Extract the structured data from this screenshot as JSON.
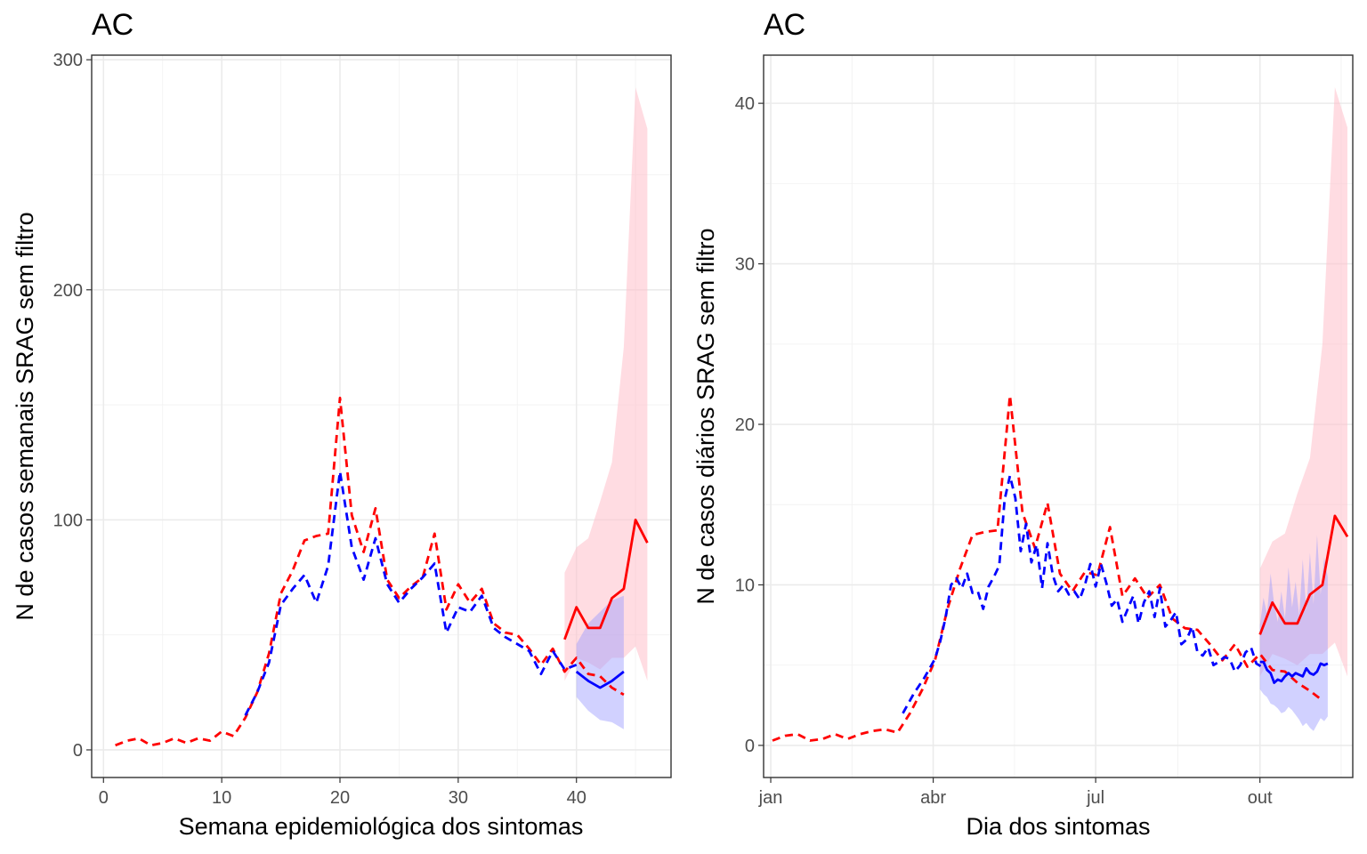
{
  "colors": {
    "observed": "#ff0000",
    "nowcast": "#0000ff",
    "ribbon_red": "#ffc0cb",
    "ribbon_blue": "#9999ff"
  },
  "chart_data": [
    {
      "type": "line",
      "title": "AC",
      "xlabel": "Semana epidemiológica dos sintomas",
      "ylabel": "N de casos semanais SRAG sem filtro",
      "xlim": [
        -1,
        48
      ],
      "ylim": [
        -12,
        302
      ],
      "x_ticks": [
        0,
        10,
        20,
        30,
        40
      ],
      "x_tick_labels": [
        "0",
        "10",
        "20",
        "30",
        "40"
      ],
      "y_ticks": [
        0,
        100,
        200,
        300
      ],
      "y_tick_labels": [
        "0",
        "100",
        "200",
        "300"
      ],
      "grid": true,
      "series": [
        {
          "style": "dashed",
          "color": "red",
          "x": [
            1,
            2,
            3,
            4,
            5,
            6,
            7,
            8,
            9,
            10,
            11,
            12,
            13,
            14,
            15,
            16,
            17,
            18,
            19,
            20,
            21,
            22,
            23,
            24,
            25,
            26,
            27,
            28,
            29,
            30,
            31,
            32,
            33,
            34,
            35,
            36,
            37,
            38,
            39,
            40,
            41,
            42,
            43,
            44
          ],
          "y": [
            2,
            4,
            5,
            2,
            3,
            5,
            3,
            5,
            4,
            8,
            6,
            14,
            25,
            42,
            68,
            78,
            91,
            93,
            94,
            153,
            102,
            86,
            105,
            74,
            66,
            71,
            75,
            94,
            61,
            72,
            64,
            70,
            55,
            51,
            50,
            44,
            37,
            44,
            34,
            40,
            33,
            32,
            27,
            24
          ]
        },
        {
          "style": "dashed",
          "color": "blue",
          "x": [
            12,
            13,
            14,
            15,
            16,
            17,
            18,
            19,
            20,
            21,
            22,
            23,
            24,
            25,
            26,
            27,
            28,
            29,
            30,
            31,
            32,
            33,
            34,
            35,
            36,
            37,
            38,
            39,
            40
          ],
          "y": [
            15,
            25,
            38,
            63,
            70,
            76,
            64,
            80,
            121,
            88,
            74,
            92,
            72,
            64,
            70,
            75,
            81,
            51,
            62,
            60,
            67,
            53,
            49,
            46,
            43,
            33,
            43,
            35,
            37
          ]
        },
        {
          "style": "solid",
          "color": "red",
          "x": [
            39,
            40,
            41,
            42,
            43,
            44,
            45,
            46
          ],
          "y": [
            48,
            62,
            53,
            53,
            66,
            70,
            100,
            90
          ]
        },
        {
          "style": "solid",
          "color": "blue",
          "x": [
            40,
            41,
            42,
            43,
            44
          ],
          "y": [
            34,
            30,
            27,
            30,
            34
          ]
        }
      ],
      "ribbons": [
        {
          "color": "pink",
          "x": [
            39,
            40,
            41,
            42,
            43,
            44,
            45,
            46
          ],
          "lower": [
            30,
            40,
            38,
            35,
            40,
            40,
            45,
            30
          ],
          "upper": [
            77,
            88,
            92,
            108,
            125,
            175,
            288,
            270
          ]
        },
        {
          "color": "lightblue",
          "x": [
            40,
            41,
            42,
            43,
            44
          ],
          "lower": [
            23,
            17,
            13,
            12,
            9
          ],
          "upper": [
            46,
            55,
            60,
            65,
            67
          ]
        }
      ]
    },
    {
      "type": "line",
      "title": "AC",
      "xlabel": "Dia dos sintomas",
      "ylabel": "N de casos diários SRAG sem filtro",
      "x_unit": "day of year 2020",
      "xlim": [
        -4,
        326
      ],
      "ylim": [
        -2,
        43
      ],
      "x_ticks": [
        0,
        91,
        182,
        274
      ],
      "x_tick_labels": [
        "jan",
        "abr",
        "jul",
        "out"
      ],
      "y_ticks": [
        0,
        10,
        20,
        30,
        40
      ],
      "y_tick_labels": [
        "0",
        "10",
        "20",
        "30",
        "40"
      ],
      "grid": true,
      "series": [
        {
          "style": "dashed",
          "color": "red",
          "x": [
            1,
            8,
            15,
            22,
            29,
            36,
            43,
            50,
            57,
            64,
            71,
            78,
            85,
            92,
            99,
            106,
            113,
            120,
            127,
            134,
            141,
            148,
            155,
            162,
            169,
            176,
            183,
            190,
            197,
            204,
            211,
            218,
            225,
            232,
            239,
            246,
            253,
            260,
            267,
            274,
            281,
            288,
            295,
            302,
            309
          ],
          "y": [
            0.3,
            0.6,
            0.7,
            0.3,
            0.4,
            0.7,
            0.4,
            0.7,
            0.9,
            1.0,
            0.8,
            2.0,
            3.5,
            5.3,
            8.5,
            11.0,
            13.1,
            13.3,
            13.4,
            21.8,
            14.5,
            12.3,
            15.1,
            10.7,
            9.6,
            10.8,
            10.6,
            13.6,
            9.3,
            10.4,
            9.2,
            10.0,
            7.9,
            7.3,
            7.2,
            6.3,
            5.3,
            6.3,
            4.9,
            5.7,
            4.7,
            4.6,
            3.9,
            3.4,
            2.8
          ]
        },
        {
          "style": "dashed",
          "color": "blue",
          "x": [
            74,
            77,
            80,
            83,
            86,
            89,
            92,
            95,
            98,
            101,
            104,
            107,
            110,
            113,
            116,
            119,
            122,
            125,
            128,
            131,
            134,
            137,
            140,
            143,
            146,
            149,
            152,
            155,
            158,
            161,
            164,
            167,
            170,
            173,
            176,
            179,
            182,
            185,
            188,
            191,
            194,
            197,
            200,
            203,
            206,
            209,
            212,
            215,
            218,
            221,
            224,
            227,
            230,
            233,
            236,
            239,
            242,
            245,
            248,
            251,
            254,
            257,
            260,
            263,
            266,
            269,
            272,
            275
          ],
          "y": [
            2.0,
            2.6,
            3.2,
            3.7,
            4.2,
            4.8,
            5.4,
            6.5,
            8.0,
            10.0,
            10.4,
            9.8,
            10.7,
            9.5,
            9.6,
            8.5,
            9.9,
            10.5,
            11.2,
            15.3,
            16.8,
            15.4,
            12.1,
            13.8,
            11.4,
            12.5,
            9.8,
            12.6,
            10.6,
            9.6,
            10.0,
            9.4,
            9.6,
            9.1,
            10.0,
            11.3,
            9.9,
            11.3,
            10.1,
            8.7,
            9.1,
            7.7,
            8.5,
            9.3,
            7.6,
            8.9,
            9.6,
            8.0,
            9.8,
            7.4,
            7.8,
            8.3,
            6.3,
            6.6,
            7.4,
            5.8,
            5.6,
            6.1,
            5.0,
            5.2,
            5.5,
            5.4,
            4.6,
            5.0,
            5.8,
            6.1,
            5.1,
            4.9
          ]
        },
        {
          "style": "solid",
          "color": "red",
          "x": [
            274,
            281,
            288,
            295,
            302,
            309,
            316,
            323
          ],
          "y": [
            6.9,
            8.9,
            7.6,
            7.6,
            9.4,
            10.0,
            14.3,
            13.0
          ]
        },
        {
          "style": "solid",
          "color": "blue",
          "x": [
            274,
            276,
            278,
            280,
            282,
            284,
            286,
            288,
            290,
            292,
            294,
            296,
            298,
            300,
            302,
            304,
            306,
            308,
            310,
            312
          ],
          "y": [
            5.2,
            5.2,
            4.7,
            4.5,
            3.9,
            4.1,
            4.0,
            4.3,
            4.5,
            4.3,
            4.5,
            4.4,
            4.3,
            4.8,
            4.5,
            4.4,
            4.6,
            5.1,
            5.0,
            5.1
          ]
        }
      ],
      "ribbons": [
        {
          "color": "pink",
          "x": [
            274,
            281,
            288,
            295,
            302,
            309,
            316,
            323
          ],
          "lower": [
            4.3,
            5.7,
            5.4,
            5.0,
            5.7,
            5.7,
            6.4,
            4.3
          ],
          "upper": [
            11.0,
            12.7,
            13.2,
            15.7,
            17.9,
            25.0,
            41.0,
            38.5
          ]
        },
        {
          "color": "lightblue",
          "x": [
            274,
            276,
            278,
            280,
            282,
            284,
            286,
            288,
            290,
            292,
            294,
            296,
            298,
            300,
            302,
            304,
            306,
            308,
            310,
            312
          ],
          "lower": [
            3.5,
            3.2,
            3.0,
            2.6,
            2.5,
            2.3,
            2.0,
            2.1,
            2.4,
            2.2,
            1.9,
            1.6,
            1.2,
            1.4,
            1.1,
            0.9,
            1.3,
            1.7,
            1.5,
            1.8
          ],
          "upper": [
            7.5,
            9.2,
            8.2,
            10.7,
            8.8,
            7.7,
            9.6,
            7.9,
            11.1,
            8.6,
            10.2,
            8.1,
            11.6,
            8.4,
            12.0,
            8.8,
            13.1,
            9.4,
            11.7,
            10.5
          ]
        }
      ]
    }
  ]
}
